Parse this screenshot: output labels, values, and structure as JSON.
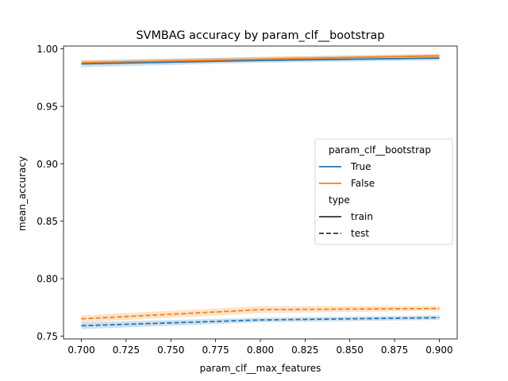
{
  "chart_data": {
    "type": "line",
    "title": "SVMBAG accuracy by param_clf__bootstrap",
    "xlabel": "param_clf__max_features",
    "ylabel": "mean_accuracy",
    "xlim": [
      0.69,
      0.91
    ],
    "ylim": [
      0.7475,
      1.0025
    ],
    "xticks": [
      0.7,
      0.725,
      0.75,
      0.775,
      0.8,
      0.825,
      0.85,
      0.875,
      0.9
    ],
    "xtick_labels": [
      "0.700",
      "0.725",
      "0.750",
      "0.775",
      "0.800",
      "0.825",
      "0.850",
      "0.875",
      "0.900"
    ],
    "yticks": [
      0.75,
      0.8,
      0.85,
      0.9,
      0.95,
      1.0
    ],
    "ytick_labels": [
      "0.75",
      "0.80",
      "0.85",
      "0.90",
      "0.95",
      "1.00"
    ],
    "grid": false,
    "legend": {
      "placement": "center-right",
      "hue_title": "param_clf__bootstrap",
      "hue_entries": [
        {
          "label": "True",
          "color": "#1f77b4"
        },
        {
          "label": "False",
          "color": "#ff7f0e"
        }
      ],
      "style_title": "type",
      "style_entries": [
        {
          "label": "train",
          "dash": "solid"
        },
        {
          "label": "test",
          "dash": "dashed"
        }
      ]
    },
    "x": [
      0.7,
      0.8,
      0.9
    ],
    "series": [
      {
        "name": "True",
        "type": "train",
        "color": "#1f77b4",
        "dash": "solid",
        "values": [
          0.987,
          0.99,
          0.992
        ],
        "lower": [
          0.984,
          0.988,
          0.99
        ],
        "upper": [
          0.99,
          0.993,
          0.995
        ]
      },
      {
        "name": "False",
        "type": "train",
        "color": "#ff7f0e",
        "dash": "solid",
        "values": [
          0.988,
          0.991,
          0.994
        ],
        "lower": [
          0.986,
          0.989,
          0.992
        ],
        "upper": [
          0.99,
          0.993,
          0.996
        ]
      },
      {
        "name": "True",
        "type": "test",
        "color": "#1f77b4",
        "dash": "dashed",
        "values": [
          0.759,
          0.764,
          0.766
        ],
        "lower": [
          0.756,
          0.762,
          0.764
        ],
        "upper": [
          0.762,
          0.766,
          0.768
        ]
      },
      {
        "name": "False",
        "type": "test",
        "color": "#ff7f0e",
        "dash": "dashed",
        "values": [
          0.765,
          0.773,
          0.774
        ],
        "lower": [
          0.762,
          0.77,
          0.772
        ],
        "upper": [
          0.768,
          0.776,
          0.776
        ]
      }
    ]
  }
}
